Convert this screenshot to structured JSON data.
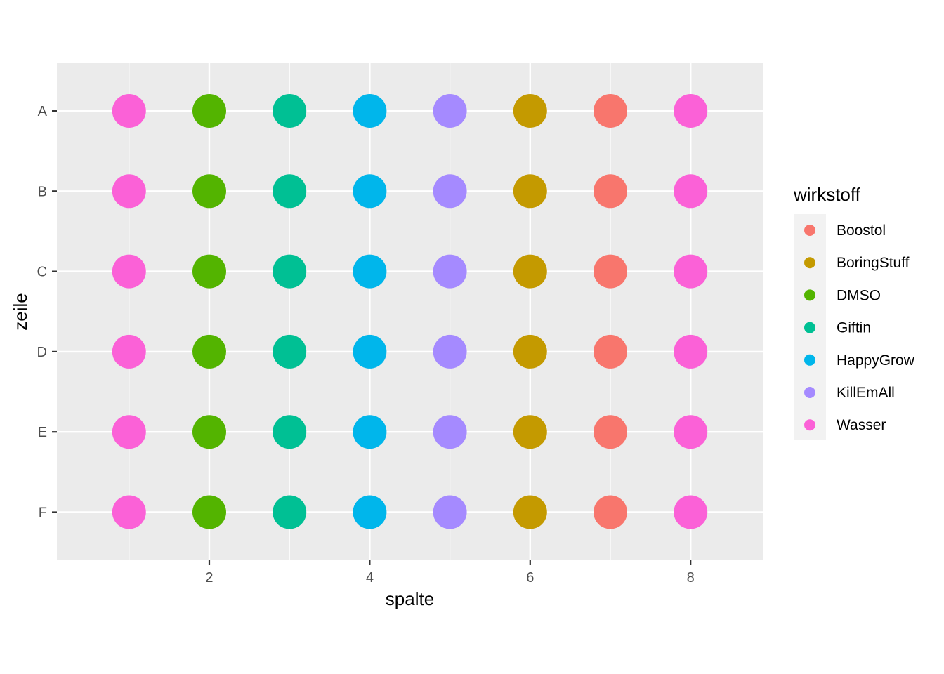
{
  "chart_data": {
    "type": "scatter",
    "xlabel": "spalte",
    "ylabel": "zeile",
    "xlim": [
      0.1,
      8.9
    ],
    "x_ticks": [
      2,
      4,
      6,
      8
    ],
    "y_categories": [
      "A",
      "B",
      "C",
      "D",
      "E",
      "F"
    ],
    "grid": true,
    "legend": {
      "title": "wirkstoff",
      "position": "right",
      "entries": [
        {
          "name": "Boostol",
          "color": "#F8766D"
        },
        {
          "name": "BoringStuff",
          "color": "#C49A00"
        },
        {
          "name": "DMSO",
          "color": "#53B400"
        },
        {
          "name": "Giftin",
          "color": "#00C094"
        },
        {
          "name": "HappyGrow",
          "color": "#00B6EB"
        },
        {
          "name": "KillEmAll",
          "color": "#A58AFF"
        },
        {
          "name": "Wasser",
          "color": "#FB61D7"
        }
      ]
    },
    "column_substance": [
      {
        "x": 1,
        "wirkstoff": "Wasser"
      },
      {
        "x": 2,
        "wirkstoff": "DMSO"
      },
      {
        "x": 3,
        "wirkstoff": "Giftin"
      },
      {
        "x": 4,
        "wirkstoff": "HappyGrow"
      },
      {
        "x": 5,
        "wirkstoff": "KillEmAll"
      },
      {
        "x": 6,
        "wirkstoff": "BoringStuff"
      },
      {
        "x": 7,
        "wirkstoff": "Boostol"
      },
      {
        "x": 8,
        "wirkstoff": "Wasser"
      }
    ],
    "note": "Every row A-F contains the same 8 points (x = 1..8) colored by wirkstoff as listed."
  }
}
